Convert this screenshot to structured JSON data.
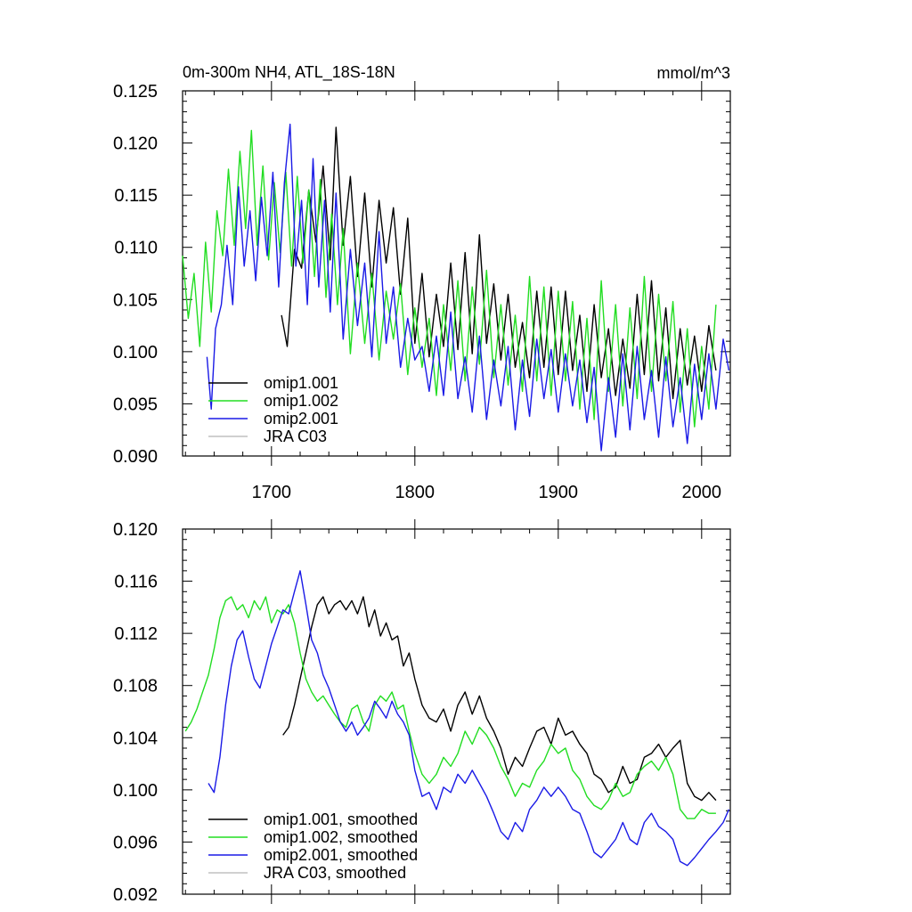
{
  "chart_data": [
    {
      "type": "line",
      "title": "0m-300m NH4, ATL_18S-18N",
      "units": "mmol/m^3",
      "xlabel": "",
      "ylabel": "",
      "xlim": [
        1638,
        2020
      ],
      "ylim": [
        0.09,
        0.125
      ],
      "xticks": [
        1700,
        1800,
        1900,
        2000
      ],
      "xtick_labels": [
        "1700",
        "1800",
        "1900",
        "2000"
      ],
      "yticks": [
        0.09,
        0.095,
        0.1,
        0.105,
        0.11,
        0.115,
        0.12,
        0.125
      ],
      "ytick_labels": [
        "0.090",
        "0.095",
        "0.100",
        "0.105",
        "0.110",
        "0.115",
        "0.120",
        "0.125"
      ],
      "legend_position": "bottom-left",
      "series": [
        {
          "name": "omip1.001",
          "color": "#000000",
          "x": [
            1707,
            1711,
            1716,
            1721,
            1726,
            1731,
            1736,
            1741,
            1745,
            1750,
            1755,
            1760,
            1765,
            1770,
            1775,
            1780,
            1785,
            1790,
            1795,
            1800,
            1805,
            1810,
            1815,
            1820,
            1825,
            1830,
            1835,
            1840,
            1845,
            1850,
            1855,
            1860,
            1865,
            1870,
            1875,
            1880,
            1885,
            1890,
            1895,
            1900,
            1905,
            1910,
            1915,
            1920,
            1925,
            1930,
            1935,
            1940,
            1945,
            1950,
            1955,
            1960,
            1965,
            1970,
            1975,
            1980,
            1985,
            1990,
            1995,
            2000,
            2005,
            2010
          ],
          "values": [
            0.1035,
            0.1005,
            0.1098,
            0.108,
            0.1155,
            0.1105,
            0.1178,
            0.1088,
            0.1215,
            0.1102,
            0.1168,
            0.1072,
            0.1152,
            0.1062,
            0.1145,
            0.1085,
            0.1138,
            0.1055,
            0.1128,
            0.1008,
            0.1075,
            0.0995,
            0.1055,
            0.1005,
            0.1085,
            0.1002,
            0.1095,
            0.0998,
            0.1112,
            0.1008,
            0.1065,
            0.0992,
            0.1055,
            0.0985,
            0.1028,
            0.0975,
            0.1058,
            0.0985,
            0.1062,
            0.0978,
            0.1058,
            0.0982,
            0.1035,
            0.0962,
            0.1045,
            0.0975,
            0.1022,
            0.0958,
            0.1012,
            0.0965,
            0.1055,
            0.0978,
            0.1068,
            0.0972,
            0.1042,
            0.0955,
            0.1022,
            0.0968,
            0.1015,
            0.0962,
            0.1025,
            0.0982
          ]
        },
        {
          "name": "omip1.002",
          "color": "#22dd22",
          "x": [
            1638,
            1642,
            1646,
            1650,
            1654,
            1658,
            1662,
            1666,
            1670,
            1674,
            1678,
            1682,
            1686,
            1690,
            1694,
            1698,
            1702,
            1706,
            1710,
            1714,
            1718,
            1722,
            1726,
            1730,
            1734,
            1738,
            1742,
            1746,
            1750,
            1755,
            1760,
            1765,
            1770,
            1775,
            1780,
            1785,
            1790,
            1795,
            1800,
            1805,
            1810,
            1815,
            1820,
            1825,
            1830,
            1835,
            1840,
            1845,
            1850,
            1855,
            1860,
            1865,
            1870,
            1875,
            1880,
            1885,
            1890,
            1895,
            1900,
            1905,
            1910,
            1915,
            1920,
            1925,
            1930,
            1935,
            1940,
            1945,
            1950,
            1955,
            1960,
            1965,
            1970,
            1975,
            1980,
            1985,
            1990,
            1995,
            2000,
            2005,
            2010
          ],
          "values": [
            0.1092,
            0.1032,
            0.1075,
            0.1005,
            0.1105,
            0.1038,
            0.1135,
            0.1092,
            0.1175,
            0.1102,
            0.1192,
            0.1118,
            0.1212,
            0.1102,
            0.1178,
            0.1088,
            0.1162,
            0.1095,
            0.1172,
            0.1082,
            0.1168,
            0.1085,
            0.1155,
            0.1072,
            0.1165,
            0.1052,
            0.1132,
            0.1045,
            0.1118,
            0.0998,
            0.1085,
            0.1008,
            0.1075,
            0.0992,
            0.1058,
            0.1012,
            0.1065,
            0.0978,
            0.1042,
            0.0985,
            0.1032,
            0.0958,
            0.1045,
            0.0982,
            0.1068,
            0.0972,
            0.1062,
            0.0988,
            0.1078,
            0.0975,
            0.1045,
            0.0968,
            0.1035,
            0.0962,
            0.1072,
            0.0972,
            0.1062,
            0.0958,
            0.1058,
            0.0972,
            0.1048,
            0.0945,
            0.1032,
            0.0935,
            0.1068,
            0.0962,
            0.1045,
            0.0948,
            0.1042,
            0.0955,
            0.1072,
            0.0962,
            0.1055,
            0.0972,
            0.1048,
            0.0942,
            0.1022,
            0.0928,
            0.1005,
            0.0945,
            0.1045
          ]
        },
        {
          "name": "omip2.001",
          "color": "#1a1ae6",
          "x": [
            1655,
            1658,
            1661,
            1665,
            1669,
            1673,
            1677,
            1681,
            1685,
            1689,
            1693,
            1697,
            1701,
            1705,
            1709,
            1713,
            1717,
            1721,
            1725,
            1729,
            1733,
            1737,
            1741,
            1745,
            1750,
            1755,
            1760,
            1765,
            1770,
            1775,
            1780,
            1785,
            1790,
            1795,
            1800,
            1805,
            1810,
            1815,
            1820,
            1825,
            1830,
            1835,
            1840,
            1845,
            1850,
            1855,
            1860,
            1865,
            1870,
            1875,
            1880,
            1885,
            1890,
            1895,
            1900,
            1905,
            1910,
            1915,
            1920,
            1925,
            1930,
            1935,
            1940,
            1945,
            1950,
            1955,
            1960,
            1965,
            1970,
            1975,
            1980,
            1985,
            1990,
            1995,
            2000,
            2005,
            2010,
            2015,
            2019
          ],
          "values": [
            0.0995,
            0.0945,
            0.1022,
            0.1045,
            0.1102,
            0.1045,
            0.1158,
            0.1082,
            0.1135,
            0.1068,
            0.1148,
            0.1092,
            0.1172,
            0.1062,
            0.1162,
            0.1218,
            0.1082,
            0.1145,
            0.1045,
            0.1185,
            0.1062,
            0.1145,
            0.1038,
            0.1152,
            0.1012,
            0.1098,
            0.1025,
            0.1085,
            0.0995,
            0.1115,
            0.1008,
            0.1062,
            0.0985,
            0.1032,
            0.0992,
            0.1005,
            0.0962,
            0.1015,
            0.0958,
            0.1038,
            0.0955,
            0.0995,
            0.0942,
            0.1015,
            0.0935,
            0.0992,
            0.0948,
            0.1005,
            0.0925,
            0.0992,
            0.0938,
            0.1012,
            0.0955,
            0.1002,
            0.0942,
            0.0998,
            0.0948,
            0.0992,
            0.0932,
            0.0985,
            0.0905,
            0.0975,
            0.0918,
            0.0998,
            0.0925,
            0.1005,
            0.0935,
            0.0982,
            0.0918,
            0.0995,
            0.0928,
            0.0975,
            0.0912,
            0.0988,
            0.0935,
            0.0998,
            0.0945,
            0.1012,
            0.0982
          ]
        },
        {
          "name": "JRA C03",
          "color": "#c0c0c0",
          "x": [],
          "values": []
        }
      ]
    },
    {
      "type": "line",
      "title": "",
      "xlabel": "",
      "ylabel": "",
      "xlim": [
        1638,
        2020
      ],
      "ylim": [
        0.092,
        0.12
      ],
      "xticks": [
        1700,
        1800,
        1900,
        2000
      ],
      "yticks": [
        0.092,
        0.096,
        0.1,
        0.104,
        0.108,
        0.112,
        0.116,
        0.12
      ],
      "ytick_labels": [
        "0.092",
        "0.096",
        "0.100",
        "0.104",
        "0.108",
        "0.112",
        "0.116",
        "0.120"
      ],
      "legend_position": "bottom-left",
      "series": [
        {
          "name": "omip1.001, smoothed",
          "color": "#000000",
          "x": [
            1708,
            1712,
            1716,
            1720,
            1724,
            1728,
            1732,
            1736,
            1740,
            1744,
            1748,
            1752,
            1756,
            1760,
            1764,
            1768,
            1772,
            1776,
            1780,
            1784,
            1788,
            1792,
            1796,
            1800,
            1805,
            1810,
            1815,
            1820,
            1825,
            1830,
            1835,
            1840,
            1845,
            1850,
            1855,
            1860,
            1865,
            1870,
            1875,
            1880,
            1885,
            1890,
            1895,
            1900,
            1905,
            1910,
            1915,
            1920,
            1925,
            1930,
            1935,
            1940,
            1945,
            1950,
            1955,
            1960,
            1965,
            1970,
            1975,
            1980,
            1985,
            1990,
            1995,
            2000,
            2005,
            2010
          ],
          "values": [
            0.1042,
            0.1048,
            0.1065,
            0.1085,
            0.1105,
            0.1125,
            0.1142,
            0.1148,
            0.1135,
            0.1142,
            0.1145,
            0.1138,
            0.1145,
            0.1135,
            0.1148,
            0.1125,
            0.1138,
            0.1118,
            0.1128,
            0.1115,
            0.1118,
            0.1095,
            0.1105,
            0.1085,
            0.1065,
            0.1055,
            0.1052,
            0.1062,
            0.1045,
            0.1065,
            0.1075,
            0.1058,
            0.1072,
            0.1055,
            0.1045,
            0.1032,
            0.1012,
            0.1025,
            0.1018,
            0.1032,
            0.1045,
            0.1048,
            0.1035,
            0.1055,
            0.1042,
            0.1045,
            0.1035,
            0.1028,
            0.1012,
            0.1008,
            0.0998,
            0.1002,
            0.1018,
            0.1005,
            0.1008,
            0.1025,
            0.1028,
            0.1035,
            0.1025,
            0.1032,
            0.1038,
            0.1005,
            0.0995,
            0.0992,
            0.0998,
            0.0992
          ]
        },
        {
          "name": "omip1.002, smoothed",
          "color": "#22dd22",
          "x": [
            1640,
            1644,
            1648,
            1652,
            1656,
            1660,
            1664,
            1668,
            1672,
            1676,
            1680,
            1684,
            1688,
            1692,
            1696,
            1700,
            1704,
            1708,
            1712,
            1716,
            1720,
            1724,
            1728,
            1732,
            1736,
            1740,
            1744,
            1748,
            1752,
            1756,
            1760,
            1764,
            1768,
            1772,
            1776,
            1780,
            1784,
            1788,
            1792,
            1796,
            1800,
            1805,
            1810,
            1815,
            1820,
            1825,
            1830,
            1835,
            1840,
            1845,
            1850,
            1855,
            1860,
            1865,
            1870,
            1875,
            1880,
            1885,
            1890,
            1895,
            1900,
            1905,
            1910,
            1915,
            1920,
            1925,
            1930,
            1935,
            1940,
            1945,
            1950,
            1955,
            1960,
            1965,
            1970,
            1975,
            1980,
            1985,
            1990,
            1995,
            2000,
            2005,
            2010
          ],
          "values": [
            0.1045,
            0.1052,
            0.1062,
            0.1075,
            0.1088,
            0.1108,
            0.1132,
            0.1145,
            0.1148,
            0.1138,
            0.1142,
            0.1132,
            0.1145,
            0.1138,
            0.1148,
            0.1128,
            0.1138,
            0.1135,
            0.1142,
            0.1128,
            0.1105,
            0.1085,
            0.1075,
            0.1068,
            0.1072,
            0.1065,
            0.1058,
            0.1052,
            0.1048,
            0.1062,
            0.1065,
            0.1052,
            0.1045,
            0.1065,
            0.1072,
            0.1068,
            0.1075,
            0.1062,
            0.1065,
            0.1045,
            0.1028,
            0.1012,
            0.1005,
            0.1012,
            0.1025,
            0.1018,
            0.1028,
            0.1045,
            0.1035,
            0.1048,
            0.1042,
            0.1032,
            0.1018,
            0.1008,
            0.0995,
            0.1005,
            0.1002,
            0.1015,
            0.1022,
            0.1035,
            0.1028,
            0.1032,
            0.1015,
            0.1008,
            0.0995,
            0.0988,
            0.0985,
            0.0992,
            0.1005,
            0.0995,
            0.0998,
            0.1012,
            0.1018,
            0.1022,
            0.1015,
            0.1025,
            0.1012,
            0.0985,
            0.0978,
            0.0978,
            0.0985,
            0.0982,
            0.0982
          ]
        },
        {
          "name": "omip2.001, smoothed",
          "color": "#1a1ae6",
          "x": [
            1656,
            1660,
            1664,
            1668,
            1672,
            1676,
            1680,
            1684,
            1688,
            1692,
            1696,
            1700,
            1704,
            1708,
            1712,
            1716,
            1720,
            1724,
            1728,
            1732,
            1736,
            1740,
            1744,
            1748,
            1752,
            1756,
            1760,
            1764,
            1768,
            1772,
            1776,
            1780,
            1784,
            1788,
            1792,
            1796,
            1800,
            1805,
            1810,
            1815,
            1820,
            1825,
            1830,
            1835,
            1840,
            1845,
            1850,
            1855,
            1860,
            1865,
            1870,
            1875,
            1880,
            1885,
            1890,
            1895,
            1900,
            1905,
            1910,
            1915,
            1920,
            1925,
            1930,
            1935,
            1940,
            1945,
            1950,
            1955,
            1960,
            1965,
            1970,
            1975,
            1980,
            1985,
            1990,
            1995,
            2000,
            2005,
            2010,
            2015,
            2019
          ],
          "values": [
            0.1005,
            0.0998,
            0.1025,
            0.1065,
            0.1095,
            0.1115,
            0.1122,
            0.1102,
            0.1085,
            0.1078,
            0.1095,
            0.1112,
            0.1125,
            0.1138,
            0.1135,
            0.1152,
            0.1168,
            0.1142,
            0.1115,
            0.1105,
            0.1088,
            0.1078,
            0.1065,
            0.1052,
            0.1045,
            0.1052,
            0.1042,
            0.1048,
            0.1055,
            0.1068,
            0.1062,
            0.1055,
            0.1068,
            0.1058,
            0.1052,
            0.1042,
            0.1015,
            0.0995,
            0.0998,
            0.0985,
            0.1002,
            0.0998,
            0.1012,
            0.1005,
            0.1015,
            0.1005,
            0.0995,
            0.0982,
            0.0968,
            0.0962,
            0.0975,
            0.0968,
            0.0985,
            0.0992,
            0.1002,
            0.0995,
            0.1002,
            0.0995,
            0.0985,
            0.0982,
            0.0968,
            0.0952,
            0.0948,
            0.0955,
            0.0962,
            0.0975,
            0.0962,
            0.0958,
            0.0975,
            0.0982,
            0.0972,
            0.0968,
            0.0962,
            0.0945,
            0.0942,
            0.0948,
            0.0955,
            0.0962,
            0.0968,
            0.0975,
            0.0985
          ]
        },
        {
          "name": "JRA C03, smoothed",
          "color": "#c0c0c0",
          "x": [],
          "values": []
        }
      ]
    }
  ]
}
